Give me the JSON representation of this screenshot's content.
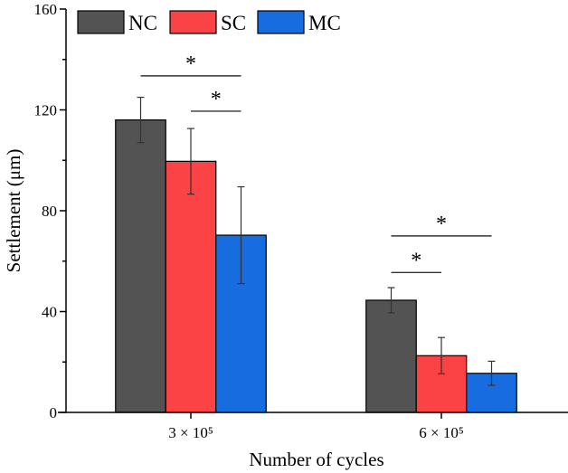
{
  "chart_data": {
    "type": "bar",
    "title": "",
    "xlabel": "Number of cycles",
    "ylabel": "Settlement (μm)",
    "ylim": [
      0,
      160
    ],
    "yticks": [
      0,
      40,
      80,
      120,
      160
    ],
    "categories": [
      "3 × 10⁵",
      "6 × 10⁵"
    ],
    "series": [
      {
        "name": "NC",
        "color": "#535353",
        "values": [
          116,
          44.5
        ],
        "errors": [
          9,
          5
        ]
      },
      {
        "name": "SC",
        "color": "#fb4244",
        "values": [
          99.6,
          22.5
        ],
        "errors": [
          13,
          7.2
        ]
      },
      {
        "name": "MC",
        "color": "#176ce0",
        "values": [
          70.3,
          15.5
        ],
        "errors": [
          19.2,
          4.8
        ]
      }
    ],
    "legend_position": "top-left",
    "grid": false,
    "annotations": [
      {
        "text": "*",
        "category": 0,
        "from_series": 0,
        "to_series": 2,
        "y": 133.5
      },
      {
        "text": "*",
        "category": 0,
        "from_series": 1,
        "to_series": 2,
        "y": 119.5
      },
      {
        "text": "*",
        "category": 1,
        "from_series": 0,
        "to_series": 2,
        "y": 70
      },
      {
        "text": "*",
        "category": 1,
        "from_series": 0,
        "to_series": 1,
        "y": 55.5
      }
    ]
  }
}
